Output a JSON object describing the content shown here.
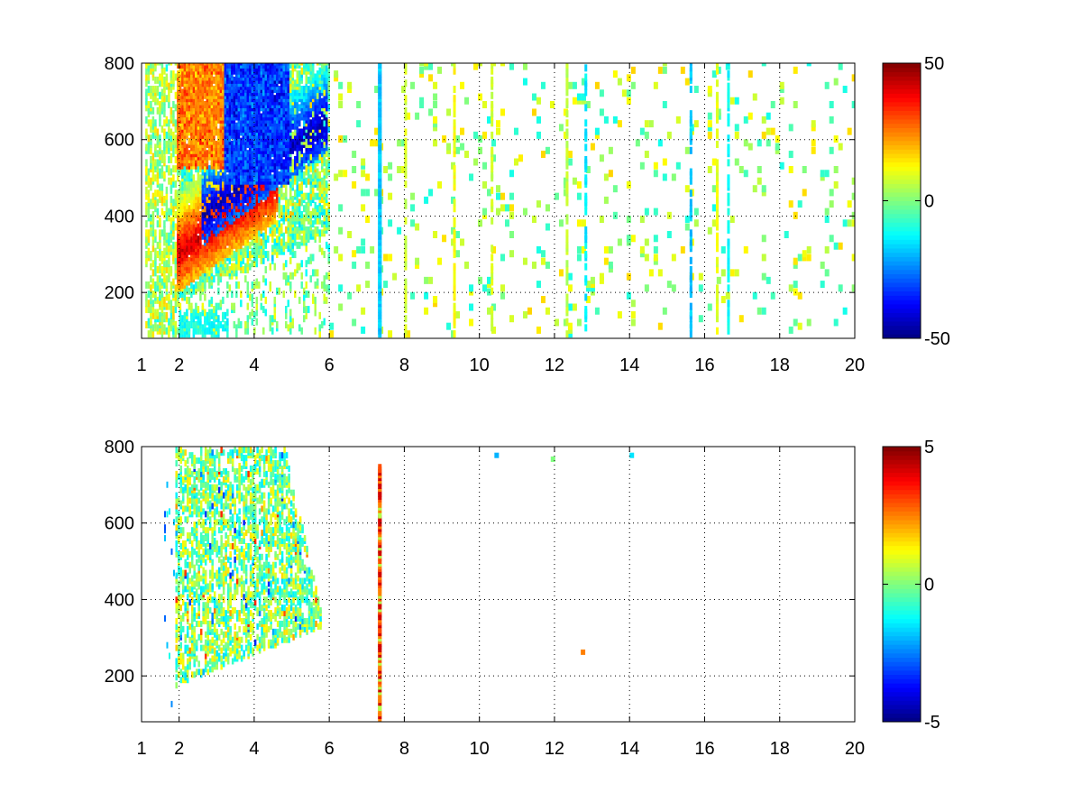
{
  "chart_data": [
    {
      "type": "heatmap",
      "title": "",
      "xlabel": "",
      "ylabel": "",
      "xlim": [
        1,
        20
      ],
      "ylim": [
        80,
        800
      ],
      "x_ticks": [
        "1",
        "2",
        "4",
        "6",
        "8",
        "10",
        "12",
        "14",
        "16",
        "18",
        "20"
      ],
      "y_ticks": [
        "200",
        "400",
        "600",
        "800"
      ],
      "grid": true,
      "colormap": "jet",
      "colorbar": {
        "range": [
          -50,
          50
        ],
        "ticks": [
          "50",
          "0",
          "-50"
        ]
      },
      "vertical_streaks": [
        {
          "x": 7.3,
          "value": -18
        },
        {
          "x": 8.0,
          "value": 8
        },
        {
          "x": 9.3,
          "value": 12
        },
        {
          "x": 10.3,
          "value": 8
        },
        {
          "x": 12.3,
          "value": 6
        },
        {
          "x": 12.8,
          "value": -14
        },
        {
          "x": 15.6,
          "value": -18
        },
        {
          "x": 16.3,
          "value": 10
        },
        {
          "x": 16.6,
          "value": -12
        }
      ],
      "features": [
        {
          "label": "positive arc",
          "x_range": [
            1.9,
            4.4
          ],
          "y_range": [
            220,
            560
          ],
          "value": 40
        },
        {
          "label": "negative arc",
          "x_range": [
            2.7,
            5.8
          ],
          "y_range": [
            190,
            560
          ],
          "value": -45
        },
        {
          "label": "upper positive band",
          "x_range": [
            1.8,
            3.4
          ],
          "y_range": [
            520,
            800
          ],
          "value": 25
        },
        {
          "label": "upper negative band",
          "x_range": [
            3.2,
            4.9
          ],
          "y_range": [
            480,
            800
          ],
          "value": -30
        }
      ]
    },
    {
      "type": "heatmap",
      "title": "",
      "xlabel": "",
      "ylabel": "",
      "xlim": [
        1,
        20
      ],
      "ylim": [
        80,
        800
      ],
      "x_ticks": [
        "1",
        "2",
        "4",
        "6",
        "8",
        "10",
        "12",
        "14",
        "16",
        "18",
        "20"
      ],
      "y_ticks": [
        "200",
        "400",
        "600",
        "800"
      ],
      "grid": true,
      "colormap": "jet",
      "colorbar": {
        "range": [
          -5,
          5
        ],
        "ticks": [
          "5",
          "0",
          "-5"
        ]
      },
      "vertical_streaks": [
        {
          "x": 7.3,
          "y_range": [
            80,
            740
          ],
          "value": 3.5
        }
      ],
      "isolated_points": [
        {
          "x": 10.4,
          "y": 770,
          "value": -2
        },
        {
          "x": 11.9,
          "y": 760,
          "value": 0
        },
        {
          "x": 14.0,
          "y": 770,
          "value": -1.5
        },
        {
          "x": 12.7,
          "y": 255,
          "value": 2.5
        }
      ]
    }
  ]
}
